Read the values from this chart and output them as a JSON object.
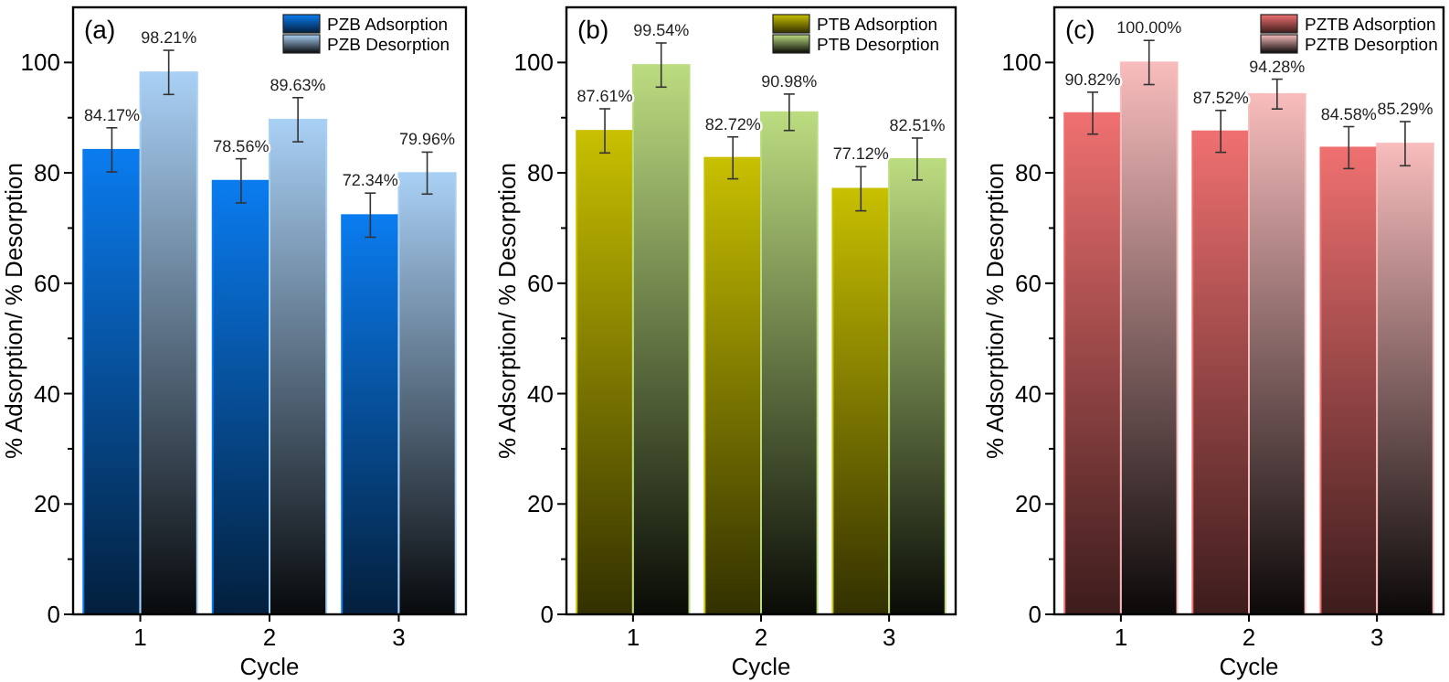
{
  "chart_data": [
    {
      "type": "bar",
      "title": "(a)",
      "xlabel": "Cycle",
      "ylabel": "% Adsorption/ % Desorption",
      "categories": [
        "1",
        "2",
        "3"
      ],
      "ylim": [
        0,
        110
      ],
      "yticks": [
        0,
        {
          "value": 10,
          "label": null
        },
        20,
        {
          "value": 30,
          "label": null
        },
        40,
        {
          "value": 50,
          "label": null
        },
        60,
        {
          "value": 70,
          "label": null
        },
        80,
        {
          "value": 90,
          "label": null
        },
        100
      ],
      "legend": "top right",
      "series": [
        {
          "name": "PZB Adsorption",
          "color": "#0a7cf0",
          "values": [
            84.17,
            78.56,
            72.34
          ],
          "errors": [
            4,
            4,
            4
          ],
          "value_labels": [
            "84.17%",
            "78.56%",
            "72.34%"
          ]
        },
        {
          "name": "PZB Desorption",
          "color": "#a9d0f5",
          "values": [
            98.21,
            89.63,
            79.96
          ],
          "errors": [
            4,
            4,
            3.8
          ],
          "value_labels": [
            "98.21%",
            "89.63%",
            "79.96%"
          ]
        }
      ]
    },
    {
      "type": "bar",
      "title": "(b)",
      "xlabel": "Cycle",
      "ylabel": "% Adsorption/ % Desorption",
      "categories": [
        "1",
        "2",
        "3"
      ],
      "ylim": [
        0,
        110
      ],
      "yticks": [
        0,
        {
          "value": 10,
          "label": null
        },
        20,
        {
          "value": 30,
          "label": null
        },
        40,
        {
          "value": 50,
          "label": null
        },
        60,
        {
          "value": 70,
          "label": null
        },
        80,
        {
          "value": 90,
          "label": null
        },
        100
      ],
      "legend": "top right",
      "series": [
        {
          "name": "PTB Adsorption",
          "color": "#c8c000",
          "values": [
            87.61,
            82.72,
            77.12
          ],
          "errors": [
            4,
            3.8,
            4
          ],
          "value_labels": [
            "87.61%",
            "82.72%",
            "77.12%"
          ]
        },
        {
          "name": "PTB Desorption",
          "color": "#bcdc80",
          "values": [
            99.54,
            90.98,
            82.51
          ],
          "errors": [
            4,
            3.3,
            3.8
          ],
          "value_labels": [
            "99.54%",
            "90.98%",
            "82.51%"
          ]
        }
      ]
    },
    {
      "type": "bar",
      "title": "(c)",
      "xlabel": "Cycle",
      "ylabel": "% Adsorption/ % Desorption",
      "categories": [
        "1",
        "2",
        "3"
      ],
      "ylim": [
        0,
        110
      ],
      "yticks": [
        0,
        {
          "value": 10,
          "label": null
        },
        20,
        {
          "value": 30,
          "label": null
        },
        40,
        {
          "value": 50,
          "label": null
        },
        60,
        {
          "value": 70,
          "label": null
        },
        80,
        {
          "value": 90,
          "label": null
        },
        100
      ],
      "legend": "top right",
      "series": [
        {
          "name": "PZTB Adsorption",
          "color": "#f07070",
          "values": [
            90.82,
            87.52,
            84.58
          ],
          "errors": [
            3.8,
            3.8,
            3.8
          ],
          "value_labels": [
            "90.82%",
            "87.52%",
            "84.58%"
          ]
        },
        {
          "name": "PZTB Desorption",
          "color": "#f8bcbc",
          "values": [
            100,
            94.28,
            85.29
          ],
          "errors": [
            4,
            2.7,
            4
          ],
          "value_labels": [
            "100.00%",
            "94.28%",
            "85.29%"
          ]
        }
      ]
    }
  ]
}
